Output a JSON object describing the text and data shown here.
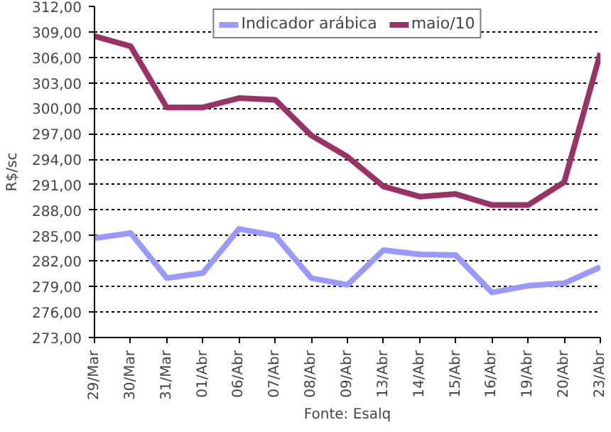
{
  "chart_data": {
    "type": "line",
    "ylabel": "R$/sc",
    "annotations": [
      "Fonte: Esalq"
    ],
    "categories": [
      "29/Mar",
      "30/Mar",
      "31/Mar",
      "01/Abr",
      "06/Abr",
      "07/Abr",
      "08/Abr",
      "09/Abr",
      "13/Abr",
      "14/Abr",
      "15/Abr",
      "16/Abr",
      "19/Abr",
      "20/Abr",
      "23/Abr"
    ],
    "series": [
      {
        "name": "Indicador arábica",
        "color": "#9999ff",
        "values": [
          284.7,
          285.3,
          280.0,
          280.6,
          285.8,
          285.0,
          280.0,
          279.2,
          283.3,
          282.8,
          282.7,
          278.3,
          279.1,
          279.4,
          281.3
        ]
      },
      {
        "name": "maio/10",
        "color": "#993366",
        "values": [
          308.5,
          307.3,
          300.1,
          300.1,
          301.2,
          301.0,
          296.8,
          294.3,
          290.8,
          289.6,
          289.9,
          288.6,
          288.6,
          291.3,
          306.5
        ]
      }
    ],
    "ylim": [
      273,
      312
    ],
    "yticks": [
      {
        "value": 273,
        "label": "273,00"
      },
      {
        "value": 276,
        "label": "276,00"
      },
      {
        "value": 279,
        "label": "279,00"
      },
      {
        "value": 282,
        "label": "282,00"
      },
      {
        "value": 285,
        "label": "285,00"
      },
      {
        "value": 288,
        "label": "288,00"
      },
      {
        "value": 291,
        "label": "291,00"
      },
      {
        "value": 294,
        "label": "294,00"
      },
      {
        "value": 297,
        "label": "297,00"
      },
      {
        "value": 300,
        "label": "300,00"
      },
      {
        "value": 303,
        "label": "303,00"
      },
      {
        "value": 306,
        "label": "306,00"
      },
      {
        "value": 309,
        "label": "309,00"
      },
      {
        "value": 312,
        "label": "312,00"
      }
    ],
    "grid": "y",
    "legend": "top",
    "marker": "none",
    "line_style": "solid"
  }
}
